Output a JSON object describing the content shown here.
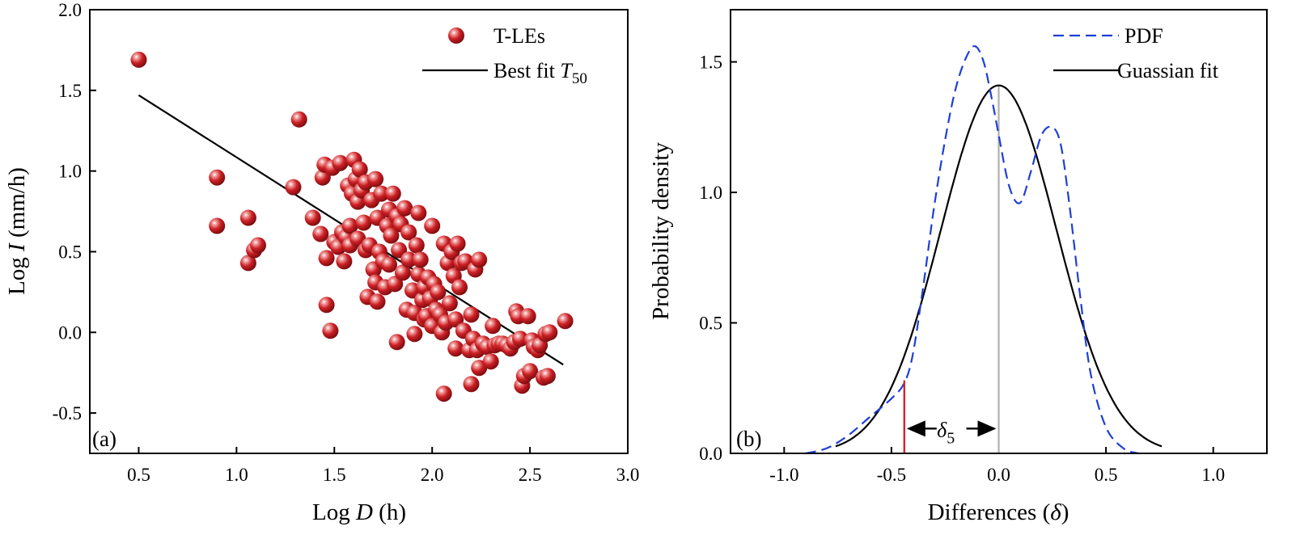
{
  "chart_data": [
    {
      "panel": "(a)",
      "type": "scatter",
      "xlabel": "Log D (h)",
      "ylabel": "Log I (mm/h)",
      "xlim": [
        0.25,
        3.0
      ],
      "ylim": [
        -0.75,
        2.0
      ],
      "xticks": [
        0.5,
        1.0,
        1.5,
        2.0,
        2.5,
        3.0
      ],
      "xtick_labels": [
        "0.5",
        "1.0",
        "1.5",
        "2.0",
        "2.5",
        "3.0"
      ],
      "yticks": [
        -0.5,
        0.0,
        0.5,
        1.0,
        1.5,
        2.0
      ],
      "ytick_labels": [
        "-0.5",
        "0.0",
        "0.5",
        "1.0",
        "1.5",
        "2.0"
      ],
      "legend": {
        "position": "top-right",
        "scatter_label": "T-LEs",
        "line_label": "Best fit T50"
      },
      "colors": {
        "points": "#cc1f24",
        "fit_line": "#000000"
      },
      "series": [
        {
          "name": "T-LEs",
          "points": [
            [
              0.5,
              1.69
            ],
            [
              0.9,
              0.96
            ],
            [
              0.9,
              0.66
            ],
            [
              1.06,
              0.71
            ],
            [
              1.06,
              0.43
            ],
            [
              1.09,
              0.51
            ],
            [
              1.11,
              0.54
            ],
            [
              1.29,
              0.9
            ],
            [
              1.32,
              1.32
            ],
            [
              1.39,
              0.71
            ],
            [
              1.43,
              0.61
            ],
            [
              1.44,
              0.96
            ],
            [
              1.45,
              1.04
            ],
            [
              1.46,
              0.46
            ],
            [
              1.46,
              0.17
            ],
            [
              1.48,
              0.01
            ],
            [
              1.49,
              1.02
            ],
            [
              1.5,
              0.56
            ],
            [
              1.52,
              0.53
            ],
            [
              1.53,
              1.05
            ],
            [
              1.54,
              0.62
            ],
            [
              1.55,
              0.44
            ],
            [
              1.56,
              0.59
            ],
            [
              1.57,
              0.91
            ],
            [
              1.58,
              0.66
            ],
            [
              1.58,
              0.54
            ],
            [
              1.59,
              0.86
            ],
            [
              1.6,
              1.07
            ],
            [
              1.61,
              0.95
            ],
            [
              1.62,
              0.81
            ],
            [
              1.62,
              0.58
            ],
            [
              1.63,
              1.01
            ],
            [
              1.64,
              0.88
            ],
            [
              1.65,
              0.68
            ],
            [
              1.66,
              0.51
            ],
            [
              1.66,
              0.93
            ],
            [
              1.67,
              0.22
            ],
            [
              1.68,
              0.54
            ],
            [
              1.69,
              0.82
            ],
            [
              1.7,
              0.39
            ],
            [
              1.71,
              0.31
            ],
            [
              1.71,
              0.95
            ],
            [
              1.72,
              0.71
            ],
            [
              1.72,
              0.19
            ],
            [
              1.73,
              0.5
            ],
            [
              1.74,
              0.86
            ],
            [
              1.75,
              0.44
            ],
            [
              1.76,
              0.28
            ],
            [
              1.77,
              0.66
            ],
            [
              1.78,
              0.76
            ],
            [
              1.78,
              0.42
            ],
            [
              1.79,
              0.6
            ],
            [
              1.8,
              0.86
            ],
            [
              1.81,
              0.3
            ],
            [
              1.82,
              0.72
            ],
            [
              1.82,
              -0.06
            ],
            [
              1.83,
              0.51
            ],
            [
              1.84,
              0.67
            ],
            [
              1.85,
              0.37
            ],
            [
              1.86,
              0.77
            ],
            [
              1.87,
              0.14
            ],
            [
              1.88,
              0.62
            ],
            [
              1.88,
              0.45
            ],
            [
              1.9,
              0.26
            ],
            [
              1.91,
              0.12
            ],
            [
              1.91,
              -0.01
            ],
            [
              1.92,
              0.54
            ],
            [
              1.93,
              0.74
            ],
            [
              1.93,
              0.36
            ],
            [
              1.94,
              0.45
            ],
            [
              1.95,
              0.2
            ],
            [
              1.96,
              0.08
            ],
            [
              1.96,
              0.28
            ],
            [
              1.97,
              0.1
            ],
            [
              1.98,
              0.34
            ],
            [
              1.99,
              0.21
            ],
            [
              2.0,
              0.66
            ],
            [
              2.0,
              0.04
            ],
            [
              2.01,
              0.3
            ],
            [
              2.02,
              0.14
            ],
            [
              2.03,
              0.25
            ],
            [
              2.04,
              0.11
            ],
            [
              2.05,
              0.0
            ],
            [
              2.06,
              -0.38
            ],
            [
              2.06,
              0.55
            ],
            [
              2.07,
              0.06
            ],
            [
              2.08,
              0.43
            ],
            [
              2.09,
              0.18
            ],
            [
              2.1,
              0.5
            ],
            [
              2.11,
              0.35
            ],
            [
              2.12,
              0.08
            ],
            [
              2.12,
              -0.1
            ],
            [
              2.13,
              0.55
            ],
            [
              2.14,
              0.28
            ],
            [
              2.15,
              0.43
            ],
            [
              2.16,
              0.01
            ],
            [
              2.17,
              0.44
            ],
            [
              2.19,
              -0.11
            ],
            [
              2.2,
              0.11
            ],
            [
              2.2,
              -0.32
            ],
            [
              2.21,
              -0.04
            ],
            [
              2.22,
              0.39
            ],
            [
              2.23,
              -0.11
            ],
            [
              2.24,
              0.45
            ],
            [
              2.24,
              -0.22
            ],
            [
              2.26,
              -0.07
            ],
            [
              2.28,
              -0.09
            ],
            [
              2.3,
              -0.18
            ],
            [
              2.31,
              0.04
            ],
            [
              2.32,
              -0.08
            ],
            [
              2.34,
              -0.07
            ],
            [
              2.36,
              -0.07
            ],
            [
              2.38,
              -0.08
            ],
            [
              2.4,
              -0.1
            ],
            [
              2.42,
              -0.06
            ],
            [
              2.43,
              0.13
            ],
            [
              2.44,
              0.1
            ],
            [
              2.45,
              -0.04
            ],
            [
              2.46,
              -0.33
            ],
            [
              2.47,
              -0.27
            ],
            [
              2.49,
              0.1
            ],
            [
              2.5,
              -0.24
            ],
            [
              2.51,
              -0.05
            ],
            [
              2.52,
              -0.09
            ],
            [
              2.54,
              -0.11
            ],
            [
              2.55,
              -0.08
            ],
            [
              2.57,
              -0.28
            ],
            [
              2.58,
              -0.01
            ],
            [
              2.59,
              -0.27
            ],
            [
              2.6,
              0.0
            ],
            [
              2.68,
              0.07
            ]
          ]
        }
      ],
      "fit_line": {
        "name": "Best fit T50",
        "points": [
          [
            0.5,
            1.47
          ],
          [
            2.67,
            -0.2
          ]
        ]
      }
    },
    {
      "panel": "(b)",
      "type": "line",
      "xlabel": "Differences (δ)",
      "ylabel": "Probability density",
      "xlim": [
        -1.25,
        1.25
      ],
      "ylim": [
        0.0,
        1.7
      ],
      "xticks": [
        -1.0,
        -0.5,
        0.0,
        0.5,
        1.0
      ],
      "xtick_labels": [
        "-1.0",
        "-0.5",
        "0.0",
        "0.5",
        "1.0"
      ],
      "yticks": [
        0.0,
        0.5,
        1.0,
        1.5
      ],
      "ytick_labels": [
        "0.0",
        "0.5",
        "1.0",
        "1.5"
      ],
      "legend": {
        "position": "top-right",
        "pdf_label": "PDF",
        "gauss_label": "Guassian fit"
      },
      "colors": {
        "pdf": "#1f3fd6",
        "gauss": "#000000",
        "zero_line": "#b0b0b0",
        "delta_line": "#d8222a"
      },
      "series": [
        {
          "name": "PDF",
          "style": "dashed",
          "x": [
            -0.9,
            -0.8,
            -0.7,
            -0.6,
            -0.5,
            -0.44,
            -0.4,
            -0.35,
            -0.3,
            -0.25,
            -0.2,
            -0.15,
            -0.11,
            -0.07,
            -0.03,
            0.0,
            0.05,
            0.1,
            0.15,
            0.2,
            0.25,
            0.29,
            0.33,
            0.38,
            0.43,
            0.5,
            0.58,
            0.65
          ],
          "y": [
            0.0,
            0.02,
            0.07,
            0.14,
            0.21,
            0.27,
            0.38,
            0.65,
            0.95,
            1.2,
            1.4,
            1.52,
            1.56,
            1.5,
            1.35,
            1.22,
            1.02,
            0.96,
            1.08,
            1.22,
            1.25,
            1.18,
            0.95,
            0.6,
            0.3,
            0.1,
            0.02,
            0.0
          ]
        },
        {
          "name": "Guassian fit",
          "style": "solid",
          "mean": 0.0,
          "peak": 1.41,
          "sigma": 0.27,
          "x_range": [
            -0.76,
            0.76
          ]
        }
      ],
      "zero_line": {
        "x": 0.0,
        "y_top": 1.41
      },
      "delta5": {
        "x": -0.44,
        "y_top": 0.28,
        "arrow_y": 0.095
      },
      "annotation": {
        "label": "δ",
        "subscript": "5"
      }
    }
  ]
}
